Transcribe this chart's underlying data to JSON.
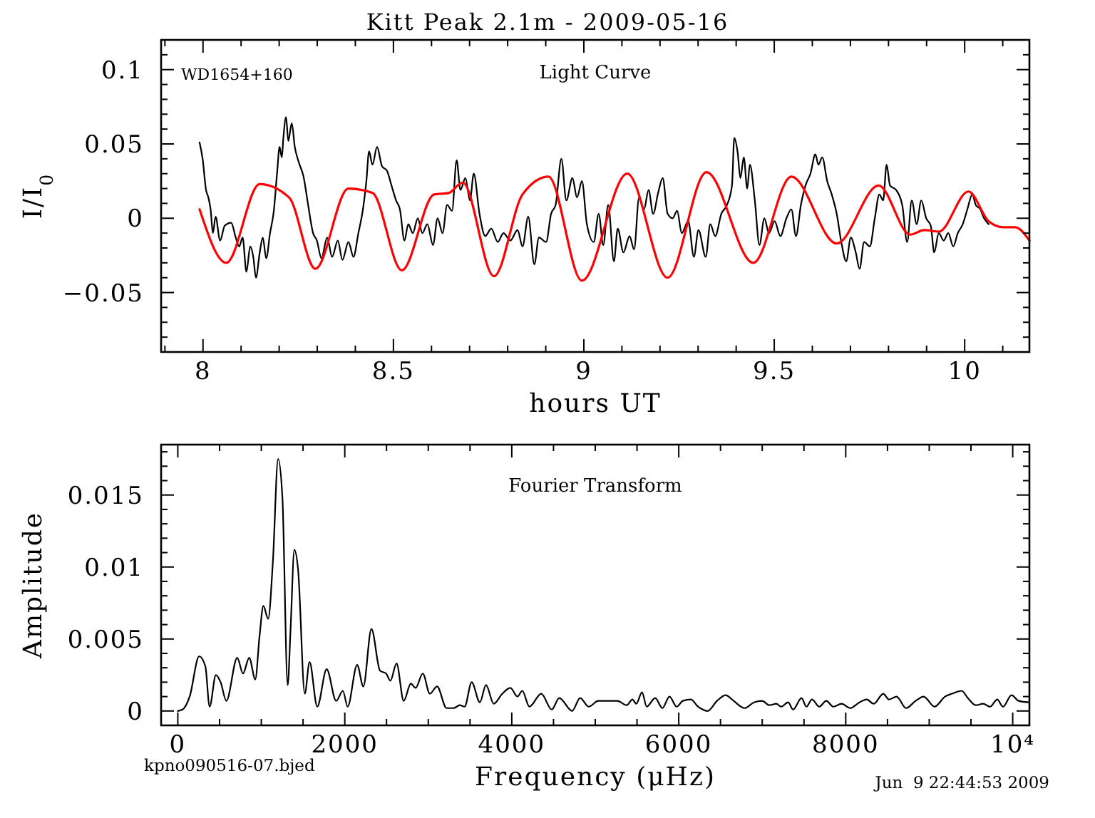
{
  "chart_data": [
    {
      "type": "line",
      "title": "Kitt Peak 2.1m - 2009-05-16",
      "xlabel": "hours UT",
      "ylabel": "I/I$_{0}$",
      "annotations": [
        "WD1654+160",
        "Light Curve"
      ],
      "xlim": [
        7.89,
        10.17
      ],
      "ylim": [
        -0.09,
        0.12
      ],
      "xticks": [
        {
          "value": 7.9,
          "label": null
        },
        8,
        {
          "value": 8.1,
          "label": null
        },
        {
          "value": 8.2,
          "label": null
        },
        {
          "value": 8.3,
          "label": null
        },
        {
          "value": 8.4,
          "label": null
        },
        8.5,
        {
          "value": 8.6,
          "label": null
        },
        {
          "value": 8.7,
          "label": null
        },
        {
          "value": 8.8,
          "label": null
        },
        {
          "value": 8.9,
          "label": null
        },
        9,
        {
          "value": 9.1,
          "label": null
        },
        {
          "value": 9.2,
          "label": null
        },
        {
          "value": 9.3,
          "label": null
        },
        {
          "value": 9.4,
          "label": null
        },
        9.5,
        {
          "value": 9.6,
          "label": null
        },
        {
          "value": 9.7,
          "label": null
        },
        {
          "value": 9.8,
          "label": null
        },
        {
          "value": 9.9,
          "label": null
        },
        10,
        {
          "value": 10.1,
          "label": null
        }
      ],
      "yticks": [
        {
          "value": -0.08,
          "label": null
        },
        {
          "value": -0.07,
          "label": null
        },
        {
          "value": -0.06,
          "label": null
        },
        -0.05,
        {
          "value": -0.04,
          "label": null
        },
        {
          "value": -0.03,
          "label": null
        },
        {
          "value": -0.02,
          "label": null
        },
        {
          "value": -0.01,
          "label": null
        },
        0,
        {
          "value": 0.01,
          "label": null
        },
        {
          "value": 0.02,
          "label": null
        },
        {
          "value": 0.03,
          "label": null
        },
        {
          "value": 0.04,
          "label": null
        },
        0.05,
        {
          "value": 0.06,
          "label": null
        },
        {
          "value": 0.07,
          "label": null
        },
        {
          "value": 0.08,
          "label": null
        },
        {
          "value": 0.09,
          "label": null
        },
        0.1,
        {
          "value": 0.11,
          "label": null
        }
      ],
      "series": [
        {
          "color": "#000000",
          "x": [
            7.991,
            7.999,
            8.008,
            8.014,
            8.02,
            8.026,
            8.033,
            8.045,
            8.057,
            8.074,
            8.086,
            8.095,
            8.104,
            8.114,
            8.124,
            8.132,
            8.139,
            8.149,
            8.157,
            8.166,
            8.176,
            8.186,
            8.195,
            8.201,
            8.207,
            8.211,
            8.218,
            8.224,
            8.233,
            8.241,
            8.251,
            8.264,
            8.276,
            8.289,
            8.299,
            8.311,
            8.326,
            8.339,
            8.354,
            8.366,
            8.382,
            8.395,
            8.408,
            8.42,
            8.429,
            8.436,
            8.445,
            8.457,
            8.47,
            8.483,
            8.495,
            8.507,
            8.517,
            8.529,
            8.539,
            8.551,
            8.564,
            8.576,
            8.589,
            8.604,
            8.616,
            8.629,
            8.641,
            8.654,
            8.666,
            8.676,
            8.689,
            8.701,
            8.711,
            8.726,
            8.741,
            8.757,
            8.774,
            8.789,
            8.807,
            8.826,
            8.839,
            8.854,
            8.87,
            8.882,
            8.901,
            8.914,
            8.926,
            8.941,
            8.954,
            8.97,
            8.982,
            8.995,
            9.008,
            9.026,
            9.039,
            9.051,
            9.064,
            9.079,
            9.089,
            9.104,
            9.12,
            9.132,
            9.145,
            9.158,
            9.17,
            9.182,
            9.195,
            9.207,
            9.22,
            9.233,
            9.245,
            9.257,
            9.274,
            9.289,
            9.301,
            9.32,
            9.332,
            9.345,
            9.361,
            9.376,
            9.389,
            9.395,
            9.404,
            9.411,
            9.42,
            9.429,
            9.436,
            9.449,
            9.461,
            9.474,
            9.486,
            9.501,
            9.516,
            9.532,
            9.545,
            9.557,
            9.57,
            9.582,
            9.595,
            9.608,
            9.616,
            9.626,
            9.639,
            9.651,
            9.664,
            9.676,
            9.689,
            9.701,
            9.714,
            9.724,
            9.736,
            9.751,
            9.764,
            9.776,
            9.786,
            9.795,
            9.804,
            9.82,
            9.836,
            9.849,
            9.861,
            9.874,
            9.886,
            9.899,
            9.911,
            9.92,
            9.932,
            9.945,
            9.957,
            9.97,
            9.982,
            9.995,
            10.007,
            10.02,
            10.029,
            10.041,
            10.051,
            10.063
          ],
          "values": [
            0.051,
            0.04,
            0.019,
            0.014,
            0.006,
            -0.01,
            0.001,
            -0.015,
            -0.005,
            -0.003,
            -0.013,
            -0.019,
            -0.013,
            -0.036,
            -0.019,
            -0.026,
            -0.04,
            -0.023,
            -0.013,
            -0.027,
            -0.01,
            0.005,
            0.032,
            0.048,
            0.041,
            0.054,
            0.068,
            0.052,
            0.064,
            0.048,
            0.038,
            0.028,
            0.009,
            -0.01,
            -0.015,
            -0.027,
            -0.013,
            -0.026,
            -0.015,
            -0.028,
            -0.016,
            -0.026,
            -0.01,
            0.006,
            0.025,
            0.045,
            0.036,
            0.048,
            0.035,
            0.032,
            0.022,
            0.012,
            0.006,
            -0.015,
            -0.004,
            -0.01,
            0.0,
            -0.01,
            -0.004,
            -0.018,
            0.0,
            -0.01,
            0.009,
            0.005,
            0.039,
            0.019,
            0.027,
            0.012,
            0.03,
            0.003,
            -0.012,
            -0.007,
            -0.016,
            -0.01,
            -0.015,
            -0.008,
            -0.019,
            0.001,
            -0.031,
            -0.013,
            -0.016,
            0.003,
            0.009,
            0.04,
            0.012,
            0.027,
            0.014,
            0.025,
            -0.004,
            -0.016,
            0.003,
            -0.018,
            0.009,
            -0.029,
            -0.007,
            -0.023,
            -0.012,
            -0.021,
            0.014,
            0.006,
            0.019,
            0.003,
            0.017,
            0.027,
            0.003,
            0.0,
            0.005,
            -0.01,
            -0.002,
            -0.026,
            -0.008,
            -0.026,
            -0.004,
            -0.012,
            0.003,
            0.009,
            0.022,
            0.054,
            0.044,
            0.027,
            0.041,
            0.02,
            0.036,
            0.012,
            -0.018,
            0.0,
            -0.01,
            -0.002,
            -0.012,
            0.0,
            0.006,
            -0.012,
            0.009,
            0.022,
            0.03,
            0.043,
            0.036,
            0.041,
            0.025,
            0.016,
            0.003,
            -0.016,
            -0.029,
            -0.013,
            -0.023,
            -0.034,
            -0.016,
            -0.019,
            0.0,
            0.016,
            0.012,
            0.036,
            0.022,
            0.019,
            0.009,
            -0.016,
            0.012,
            -0.004,
            0.012,
            0.0,
            -0.005,
            -0.023,
            -0.01,
            -0.015,
            -0.01,
            -0.019,
            -0.01,
            -0.004,
            0.006,
            0.016,
            0.009,
            0.006,
            0.0,
            -0.004
          ]
        },
        {
          "color": "#ff0000",
          "x": [
            7.991,
            8.061,
            8.149,
            8.226,
            8.295,
            8.382,
            8.445,
            8.522,
            8.607,
            8.645,
            8.682,
            8.764,
            8.839,
            8.907,
            8.995,
            9.114,
            9.22,
            9.322,
            9.445,
            9.545,
            9.664,
            9.774,
            9.857,
            9.894,
            9.932,
            10.01,
            10.063,
            10.101,
            10.132,
            10.17
          ],
          "values": [
            0.006,
            -0.03,
            0.023,
            0.014,
            -0.034,
            0.02,
            0.017,
            -0.035,
            0.016,
            0.017,
            0.024,
            -0.039,
            0.016,
            0.028,
            -0.042,
            0.03,
            -0.04,
            0.031,
            -0.03,
            0.028,
            -0.017,
            0.022,
            -0.011,
            -0.008,
            -0.009,
            0.018,
            -0.002,
            -0.006,
            -0.006,
            -0.015
          ]
        }
      ]
    },
    {
      "type": "line",
      "xlabel": "Frequency (μHz)",
      "ylabel": "Amplitude",
      "annotations": [
        "Fourier Transform",
        "kpno090516-07.bjed",
        "Jun  9 22:44:53 2009"
      ],
      "xlim": [
        -200,
        10200
      ],
      "ylim": [
        -0.001,
        0.0185
      ],
      "xticks": [
        0,
        {
          "value": 500,
          "label": null
        },
        {
          "value": 1000,
          "label": null
        },
        {
          "value": 1500,
          "label": null
        },
        2000,
        {
          "value": 2500,
          "label": null
        },
        {
          "value": 3000,
          "label": null
        },
        {
          "value": 3500,
          "label": null
        },
        4000,
        {
          "value": 4500,
          "label": null
        },
        {
          "value": 5000,
          "label": null
        },
        {
          "value": 5500,
          "label": null
        },
        6000,
        {
          "value": 6500,
          "label": null
        },
        {
          "value": 7000,
          "label": null
        },
        {
          "value": 7500,
          "label": null
        },
        8000,
        {
          "value": 8500,
          "label": null
        },
        {
          "value": 9000,
          "label": null
        },
        {
          "value": 9500,
          "label": null
        },
        {
          "value": 10000,
          "label": "10⁴"
        }
      ],
      "yticks": [
        0,
        {
          "value": 0.001,
          "label": null
        },
        {
          "value": 0.002,
          "label": null
        },
        {
          "value": 0.003,
          "label": null
        },
        {
          "value": 0.004,
          "label": null
        },
        0.005,
        {
          "value": 0.006,
          "label": null
        },
        {
          "value": 0.007,
          "label": null
        },
        {
          "value": 0.008,
          "label": null
        },
        {
          "value": 0.009,
          "label": null
        },
        0.01,
        {
          "value": 0.011,
          "label": null
        },
        {
          "value": 0.012,
          "label": null
        },
        {
          "value": 0.013,
          "label": null
        },
        {
          "value": 0.014,
          "label": null
        },
        0.015,
        {
          "value": 0.016,
          "label": null
        },
        {
          "value": 0.017,
          "label": null
        },
        {
          "value": 0.018,
          "label": null
        }
      ],
      "series": [
        {
          "color": "#000000",
          "x": [
            0,
            57,
            142,
            256,
            330,
            381,
            456,
            513,
            581,
            712,
            781,
            855,
            928,
            979,
            1025,
            1082,
            1140,
            1201,
            1253,
            1316,
            1350,
            1396,
            1441,
            1521,
            1578,
            1670,
            1783,
            1897,
            1977,
            2034,
            2148,
            2222,
            2319,
            2422,
            2495,
            2546,
            2620,
            2706,
            2791,
            2848,
            2934,
            3019,
            3105,
            3219,
            3304,
            3378,
            3435,
            3520,
            3618,
            3691,
            3784,
            3887,
            3983,
            4068,
            4126,
            4211,
            4353,
            4478,
            4569,
            4723,
            4819,
            4921,
            5036,
            5121,
            5263,
            5377,
            5445,
            5491,
            5560,
            5616,
            5718,
            5804,
            5889,
            5975,
            6048,
            6145,
            6231,
            6345,
            6458,
            6561,
            6657,
            6789,
            6901,
            6999,
            7084,
            7169,
            7226,
            7311,
            7369,
            7471,
            7528,
            7596,
            7682,
            7767,
            7852,
            7950,
            8052,
            8165,
            8250,
            8335,
            8450,
            8518,
            8609,
            8723,
            8837,
            8933,
            9064,
            9189,
            9274,
            9389,
            9462,
            9559,
            9645,
            9730,
            9815,
            9883,
            9986,
            10072,
            10190
          ],
          "values": [
            0,
            0.0001,
            0.001,
            0.0038,
            0.0031,
            0.0003,
            0.0025,
            0.002,
            0.0007,
            0.0037,
            0.0026,
            0.0037,
            0.0022,
            0.0052,
            0.0073,
            0.0064,
            0.0105,
            0.0175,
            0.0148,
            0.0018,
            0.0056,
            0.0112,
            0.0098,
            0.0012,
            0.0034,
            0.0003,
            0.0029,
            0.0007,
            0.0014,
            0.0003,
            0.0032,
            0.0017,
            0.0057,
            0.0028,
            0.0026,
            0.0021,
            0.0033,
            0.0007,
            0.0019,
            0.0016,
            0.0026,
            0.0012,
            0.0017,
            0.0002,
            0.0002,
            0.0004,
            0.0003,
            0.002,
            0.0006,
            0.0018,
            0.0005,
            0.0012,
            0.0016,
            0.001,
            0.0014,
            0.0003,
            0.0012,
            0.0001,
            0.0009,
            0,
            0.0009,
            0.0003,
            0.0007,
            0.0007,
            0.0007,
            0.0004,
            0.0008,
            0.0005,
            0.0013,
            0.0003,
            0.0009,
            0.0002,
            0.001,
            0.0003,
            0.0007,
            0.0008,
            0.0003,
            0,
            0.0007,
            0.0011,
            0.0007,
            0.0002,
            0.0006,
            0.0007,
            0.0004,
            0.0005,
            0.0003,
            0.0006,
            0.0001,
            0.0009,
            0.0003,
            0.0008,
            0.0003,
            0.0007,
            0.0003,
            0.0005,
            0.0002,
            0.0006,
            0.0008,
            0.0005,
            0.0012,
            0.0008,
            0.001,
            0.0002,
            0.0007,
            0.001,
            0.0003,
            0.001,
            0.0012,
            0.0014,
            0.0009,
            0.0004,
            0.0005,
            0.0003,
            0.0008,
            0.0003,
            0.0011,
            0.0007,
            0.0006
          ]
        }
      ]
    }
  ]
}
